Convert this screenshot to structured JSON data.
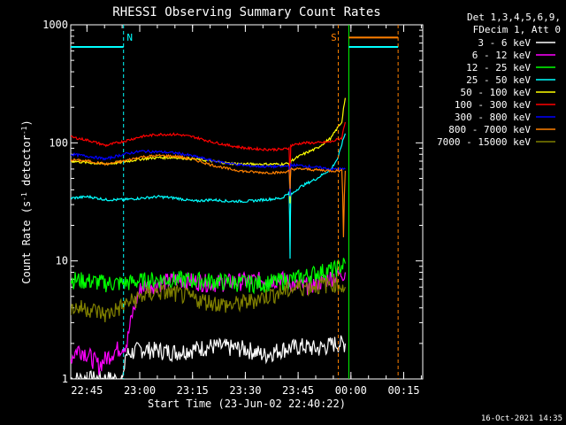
{
  "chart_data": {
    "type": "line",
    "title": "RHESSI Observing Summary Count Rates",
    "xlabel": "Start Time (23-Jun-02 22:40:22)",
    "ylabel_prefix": "Count Rate (s",
    "ylabel_sup": "-1",
    "ylabel_mid": " detector",
    "ylabel_suffix": ")",
    "x_ticks": [
      "22:45",
      "23:00",
      "23:15",
      "23:30",
      "23:45",
      "00:00",
      "00:15"
    ],
    "x_tick_minutes": [
      4.6,
      19.6,
      34.6,
      49.6,
      64.6,
      79.6,
      94.6
    ],
    "xlim_minutes": [
      0,
      100
    ],
    "y_scale": "log",
    "ylim": [
      1,
      1000
    ],
    "y_ticks": [
      1,
      10,
      100,
      1000
    ],
    "y_tick_labels": [
      "1",
      "10",
      "100",
      "1000"
    ],
    "legend_header": [
      "Det 1,3,4,5,6,9,",
      "FDecim 1, Att 0"
    ],
    "series": [
      {
        "name": "3 - 6 keV",
        "color": "#ffffff",
        "x": [
          0,
          15,
          15.5,
          20,
          30,
          40,
          50,
          55,
          60,
          66,
          70,
          75,
          78
        ],
        "y": [
          1,
          1,
          1.6,
          1.8,
          1.7,
          1.9,
          1.8,
          1.6,
          1.8,
          1.9,
          1.8,
          2.0,
          2.0
        ]
      },
      {
        "name": "6 - 12 keV",
        "color": "#ff00ff",
        "x": [
          0,
          2,
          4,
          8,
          12,
          16,
          20,
          25,
          30,
          40,
          50,
          60,
          65,
          70,
          75,
          78
        ],
        "y": [
          1.5,
          1.8,
          1.7,
          1.3,
          1.7,
          2.0,
          6.0,
          6.5,
          7.0,
          6.5,
          6.8,
          7.0,
          6.0,
          6.5,
          7.5,
          8.0
        ]
      },
      {
        "name": "12 - 25 keV",
        "color": "#00ff00",
        "x": [
          0,
          5,
          10,
          15,
          20,
          25,
          30,
          40,
          50,
          55,
          60,
          65,
          70,
          75,
          78
        ],
        "y": [
          7.0,
          6.8,
          6.5,
          6.5,
          6.8,
          7.0,
          7.0,
          6.8,
          6.5,
          6.5,
          6.8,
          7.2,
          8.0,
          8.5,
          9.5
        ]
      },
      {
        "name": "25 - 50 keV",
        "color": "#00ffff",
        "x": [
          0,
          5,
          10,
          15,
          20,
          25,
          30,
          35,
          40,
          45,
          50,
          55,
          60,
          62,
          62.3,
          62.5,
          65,
          70,
          74,
          76,
          78
        ],
        "y": [
          34,
          35,
          33,
          33,
          34,
          35,
          34,
          32,
          33,
          32,
          32,
          33,
          34,
          38,
          10,
          36,
          42,
          50,
          60,
          75,
          120
        ]
      },
      {
        "name": "50 - 100 keV",
        "color": "#ffff00",
        "x": [
          0,
          5,
          10,
          15,
          20,
          25,
          30,
          35,
          40,
          45,
          50,
          55,
          60,
          62,
          62.3,
          62.5,
          66,
          70,
          74,
          77,
          78
        ],
        "y": [
          70,
          68,
          66,
          69,
          73,
          75,
          75,
          73,
          70,
          67,
          66,
          66,
          66,
          67,
          30,
          70,
          80,
          90,
          110,
          150,
          240
        ]
      },
      {
        "name": "100 - 300 keV",
        "color": "#ff0000",
        "x": [
          0,
          5,
          10,
          15,
          20,
          25,
          30,
          35,
          40,
          45,
          50,
          55,
          60,
          62,
          62.3,
          62.5,
          66,
          70,
          74,
          77,
          78
        ],
        "y": [
          112,
          105,
          95,
          103,
          113,
          118,
          118,
          112,
          102,
          95,
          90,
          88,
          88,
          90,
          45,
          95,
          100,
          100,
          102,
          110,
          150
        ]
      },
      {
        "name": "300 - 800 keV",
        "color": "#0000ff",
        "x": [
          0,
          5,
          10,
          15,
          20,
          25,
          30,
          35,
          40,
          45,
          50,
          55,
          60,
          62,
          62.3,
          62.5,
          66,
          70,
          74,
          78
        ],
        "y": [
          80,
          77,
          73,
          80,
          85,
          84,
          82,
          77,
          71,
          67,
          64,
          63,
          63,
          64,
          35,
          65,
          64,
          62,
          60,
          60
        ]
      },
      {
        "name": "800 - 7000 keV",
        "color": "#ff8000",
        "x": [
          0,
          5,
          10,
          15,
          20,
          25,
          30,
          35,
          40,
          45,
          50,
          55,
          60,
          62,
          62.3,
          62.5,
          66,
          70,
          74,
          77,
          77.5,
          78
        ],
        "y": [
          72,
          70,
          66,
          70,
          76,
          78,
          77,
          72,
          65,
          60,
          57,
          56,
          56,
          58,
          40,
          60,
          60,
          59,
          58,
          58,
          16,
          58
        ]
      },
      {
        "name": "7000 - 15000 keV",
        "color": "#808000",
        "x": [
          0,
          5,
          10,
          15,
          20,
          25,
          30,
          35,
          40,
          45,
          50,
          55,
          60,
          65,
          70,
          75,
          78
        ],
        "y": [
          4.0,
          4.0,
          3.5,
          4.2,
          5.0,
          5.5,
          5.3,
          4.8,
          4.5,
          4.2,
          4.5,
          5.0,
          5.5,
          6.0,
          6.2,
          6.5,
          6.0
        ]
      }
    ],
    "markers": [
      {
        "label": "N",
        "color": "#00ffff",
        "line_x": 15,
        "level": 650,
        "span": [
          0,
          15
        ]
      },
      {
        "label": "S",
        "color": "#ff8000",
        "line_x": 76,
        "level": 780,
        "span": [
          79,
          93
        ]
      }
    ],
    "extra_level": {
      "color": "#00ffff",
      "level": 650,
      "span": [
        79,
        93
      ]
    },
    "vlines": [
      {
        "x": 79,
        "color": "#00ff00",
        "style": "solid"
      },
      {
        "x": 93,
        "color": "#ff8000",
        "style": "dashed"
      }
    ]
  },
  "footer": {
    "timestamp": "16-Oct-2021 14:35"
  }
}
